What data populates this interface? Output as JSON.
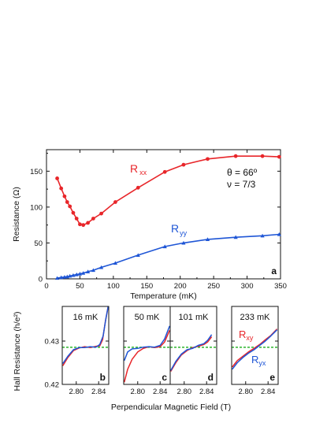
{
  "colors": {
    "red": "#e8262a",
    "blue": "#1f56d6",
    "green": "#2db52d",
    "axis": "#111111"
  },
  "chart_data": [
    {
      "type": "line",
      "panel": "a",
      "xlabel": "Temperature (mK)",
      "ylabel": "Resistance (Ω)",
      "xlim": [
        0,
        350
      ],
      "ylim": [
        0,
        180
      ],
      "xticks": [
        0,
        50,
        100,
        150,
        200,
        250,
        300,
        350
      ],
      "yticks": [
        0,
        50,
        100,
        150
      ],
      "xtick_labels": [
        "0",
        "50",
        "100",
        "150",
        "200",
        "250",
        "300",
        "350"
      ],
      "ytick_labels": [
        "0",
        "50",
        "100",
        "150"
      ],
      "annotation_lines": [
        "θ = 66º",
        "ν = 7/3"
      ],
      "series": [
        {
          "name": "Rxx",
          "label_main": "R",
          "label_sub": "xx",
          "color": "#e8262a",
          "marker": "circle",
          "x": [
            16,
            22,
            27,
            31,
            35,
            40,
            45,
            50,
            55,
            62,
            70,
            82,
            103,
            137,
            177,
            205,
            241,
            283,
            323,
            348
          ],
          "y": [
            140,
            126,
            115,
            107,
            101,
            92,
            84,
            76,
            75,
            78,
            84,
            91,
            107,
            127,
            149,
            159,
            167,
            171,
            171,
            170
          ]
        },
        {
          "name": "Ryy",
          "label_main": "R",
          "label_sub": "yy",
          "color": "#1f56d6",
          "marker": "triangle",
          "x": [
            16,
            22,
            27,
            31,
            35,
            40,
            45,
            50,
            55,
            62,
            70,
            82,
            103,
            137,
            177,
            205,
            241,
            283,
            323,
            348
          ],
          "y": [
            1,
            2,
            2.5,
            3,
            4,
            5,
            6,
            7,
            8,
            10,
            12,
            16,
            22,
            33,
            45,
            50,
            55,
            58,
            60,
            62
          ]
        }
      ]
    },
    {
      "type": "line",
      "panels": "b-e",
      "ylabel": "Hall Resistance (h/e²)",
      "xlabel": "Perpendicular Magnetic Field (T)",
      "xlim": [
        2.775,
        2.858
      ],
      "ylim": [
        0.42,
        0.438
      ],
      "xtick_labels": [
        "2.80",
        "2.84"
      ],
      "xticks": [
        2.8,
        2.84
      ],
      "ytick_labels": [
        "0.42",
        "0.43"
      ],
      "yticks": [
        0.42,
        0.43
      ],
      "plateau_value": 0.42857,
      "panels_list": [
        {
          "letter": "b",
          "temperature": "16 mK",
          "series": [
            {
              "name": "Rxy",
              "color": "#e8262a",
              "x": [
                2.776,
                2.785,
                2.795,
                2.805,
                2.815,
                2.825,
                2.835,
                2.842,
                2.847,
                2.852,
                2.857
              ],
              "y": [
                0.4243,
                0.4262,
                0.4278,
                0.4284,
                0.4287,
                0.4285,
                0.4288,
                0.4289,
                0.4303,
                0.4345,
                0.438
              ]
            },
            {
              "name": "Ryx",
              "color": "#1f56d6",
              "x": [
                2.776,
                2.785,
                2.795,
                2.805,
                2.815,
                2.825,
                2.835,
                2.842,
                2.848,
                2.853,
                2.857
              ],
              "y": [
                0.4248,
                0.4265,
                0.428,
                0.4285,
                0.4285,
                0.4287,
                0.4286,
                0.4292,
                0.4312,
                0.4352,
                0.438
              ]
            }
          ]
        },
        {
          "letter": "c",
          "temperature": "50 mK",
          "series": [
            {
              "name": "Rxy",
              "color": "#e8262a",
              "x": [
                2.776,
                2.782,
                2.79,
                2.8,
                2.81,
                2.82,
                2.83,
                2.84,
                2.848,
                2.857
              ],
              "y": [
                0.4205,
                0.4235,
                0.4258,
                0.4275,
                0.4283,
                0.4287,
                0.4285,
                0.4287,
                0.4298,
                0.4325
              ]
            },
            {
              "name": "Ryx",
              "color": "#1f56d6",
              "x": [
                2.776,
                2.782,
                2.79,
                2.8,
                2.81,
                2.82,
                2.83,
                2.84,
                2.848,
                2.857
              ],
              "y": [
                0.4255,
                0.4275,
                0.4282,
                0.4283,
                0.4286,
                0.4287,
                0.4286,
                0.429,
                0.4305,
                0.4335
              ]
            }
          ]
        },
        {
          "letter": "d",
          "temperature": "101 mK",
          "series": [
            {
              "name": "Rxy",
              "color": "#e8262a",
              "x": [
                2.776,
                2.785,
                2.795,
                2.805,
                2.815,
                2.825,
                2.835,
                2.842,
                2.849
              ],
              "y": [
                0.423,
                0.425,
                0.4268,
                0.4278,
                0.4285,
                0.4288,
                0.4292,
                0.4298,
                0.431
              ]
            },
            {
              "name": "Ryx",
              "color": "#1f56d6",
              "x": [
                2.776,
                2.785,
                2.795,
                2.805,
                2.815,
                2.825,
                2.835,
                2.842,
                2.849
              ],
              "y": [
                0.4232,
                0.4253,
                0.427,
                0.428,
                0.4283,
                0.429,
                0.4294,
                0.4302,
                0.4315
              ]
            }
          ]
        },
        {
          "letter": "e",
          "temperature": "233 mK",
          "label_rxy_main": "R",
          "label_rxy_sub": "xy",
          "label_ryx_main": "R",
          "label_ryx_sub": "yx",
          "series": [
            {
              "name": "Rxy",
              "color": "#e8262a",
              "x": [
                2.776,
                2.785,
                2.795,
                2.805,
                2.815,
                2.825,
                2.835,
                2.845,
                2.856
              ],
              "y": [
                0.424,
                0.4255,
                0.4265,
                0.4275,
                0.4283,
                0.4292,
                0.4303,
                0.4313,
                0.4328
              ]
            },
            {
              "name": "Ryx",
              "color": "#1f56d6",
              "x": [
                2.776,
                2.785,
                2.795,
                2.805,
                2.815,
                2.825,
                2.835,
                2.845,
                2.856
              ],
              "y": [
                0.4235,
                0.425,
                0.4262,
                0.4272,
                0.428,
                0.429,
                0.43,
                0.4312,
                0.4326
              ]
            }
          ]
        }
      ]
    }
  ]
}
